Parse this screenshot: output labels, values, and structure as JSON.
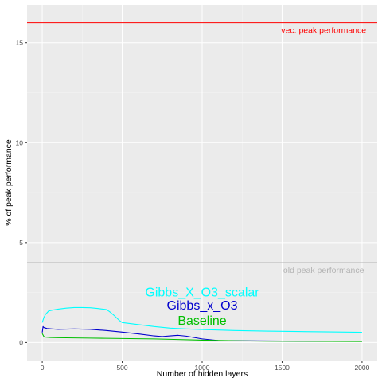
{
  "chart_data": {
    "type": "line",
    "xlabel": "Number of hidden layers",
    "ylabel": "% of peak performance",
    "xlim": [
      -95,
      2095
    ],
    "ylim": [
      -0.9,
      16.9
    ],
    "x_ticks": [
      0,
      500,
      1000,
      1500,
      2000
    ],
    "y_ticks": [
      0,
      5,
      10,
      15
    ],
    "grid": true,
    "colors": {
      "panel": "#ebebeb",
      "grid_major": "#ffffff",
      "grid_minor": "#f5f5f5"
    },
    "series": [
      {
        "name": "Gibbs_X_O3_scalar",
        "color": "#00ffff",
        "x": [
          0,
          10,
          20,
          40,
          70,
          100,
          150,
          200,
          250,
          300,
          350,
          400,
          420,
          450,
          480,
          500,
          600,
          700,
          800,
          900,
          1000,
          1200,
          1400,
          1600,
          1800,
          2000
        ],
        "y": [
          1.0,
          1.25,
          1.4,
          1.58,
          1.63,
          1.67,
          1.72,
          1.75,
          1.75,
          1.74,
          1.7,
          1.65,
          1.55,
          1.35,
          1.12,
          1.0,
          0.9,
          0.8,
          0.72,
          0.68,
          0.65,
          0.6,
          0.57,
          0.55,
          0.53,
          0.51
        ]
      },
      {
        "name": "Gibbs_x_O3",
        "color": "#0000cd",
        "x": [
          0,
          5,
          10,
          30,
          60,
          100,
          150,
          200,
          300,
          400,
          500,
          600,
          700,
          750,
          800,
          850,
          900,
          1000,
          1100,
          1200,
          1400,
          1600,
          1800,
          2000
        ],
        "y": [
          0.5,
          0.8,
          0.75,
          0.7,
          0.68,
          0.66,
          0.67,
          0.68,
          0.66,
          0.6,
          0.52,
          0.43,
          0.33,
          0.3,
          0.33,
          0.36,
          0.32,
          0.18,
          0.1,
          0.09,
          0.08,
          0.07,
          0.065,
          0.06
        ]
      },
      {
        "name": "Baseline",
        "color": "#00bf00",
        "x": [
          0,
          10,
          20,
          50,
          100,
          200,
          300,
          400,
          500,
          600,
          700,
          800,
          1000,
          1200,
          1400,
          1600,
          1800,
          2000
        ],
        "y": [
          0.45,
          0.3,
          0.27,
          0.25,
          0.24,
          0.23,
          0.22,
          0.21,
          0.2,
          0.19,
          0.18,
          0.16,
          0.12,
          0.09,
          0.07,
          0.065,
          0.06,
          0.055
        ]
      }
    ],
    "reference_lines": [
      {
        "y": 16.0,
        "label": "vec. peak performance",
        "color": "#ff0000",
        "label_color": "#ff0000",
        "label_x": 1760
      },
      {
        "y": 4.0,
        "label": "old peak performance",
        "color": "#b3b3b3",
        "label_color": "#b3b3b3",
        "label_x": 1760
      }
    ],
    "annotations": [
      {
        "text": "Gibbs_X_O3_scalar",
        "x": 1000,
        "y": 2.3,
        "color": "#00ffff",
        "size": "large"
      },
      {
        "text": "Gibbs_x_O3",
        "x": 1000,
        "y": 1.65,
        "color": "#0000cd",
        "size": "large"
      },
      {
        "text": "Baseline",
        "x": 1000,
        "y": 0.9,
        "color": "#00bf00",
        "size": "large"
      }
    ]
  }
}
